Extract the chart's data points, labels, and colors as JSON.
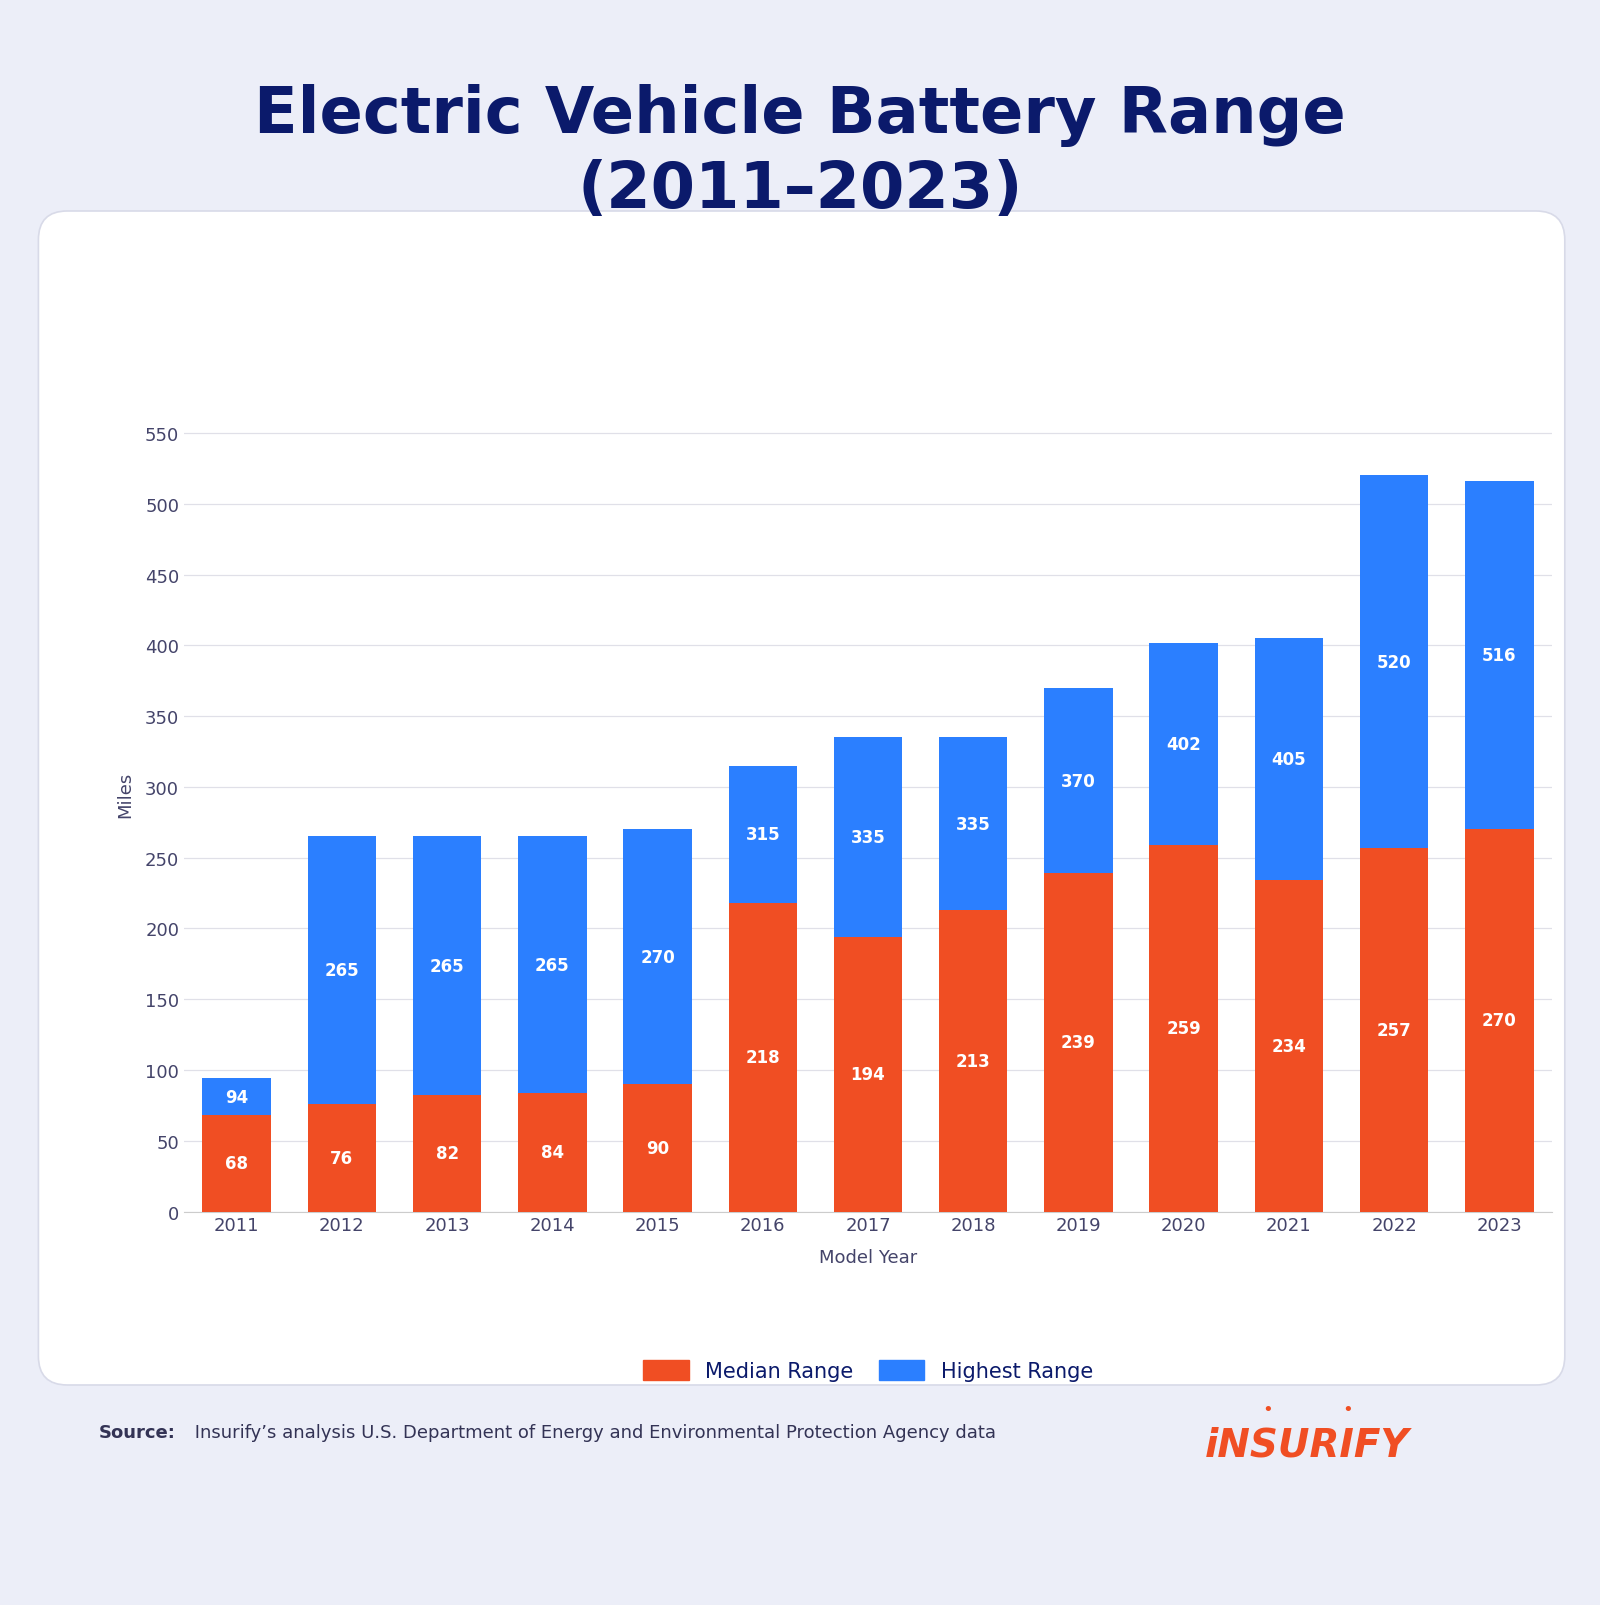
{
  "title": "Electric Vehicle Battery Range\n(2011–2023)",
  "years": [
    2011,
    2012,
    2013,
    2014,
    2015,
    2016,
    2017,
    2018,
    2019,
    2020,
    2021,
    2022,
    2023
  ],
  "median_range": [
    68,
    76,
    82,
    84,
    90,
    218,
    194,
    213,
    239,
    259,
    234,
    257,
    270
  ],
  "highest_range": [
    94,
    265,
    265,
    265,
    270,
    315,
    335,
    335,
    370,
    402,
    405,
    520,
    516
  ],
  "median_color": "#F04E23",
  "highest_color": "#2B7FFF",
  "title_color": "#0B1A6B",
  "axis_label_color": "#44446A",
  "tick_color": "#44446A",
  "background_outer": "#ECEEF8",
  "background_inner": "#FFFFFF",
  "xlabel": "Model Year",
  "ylabel": "Miles",
  "legend_median": "Median Range",
  "legend_highest": "Highest Range",
  "yticks": [
    0,
    50,
    100,
    150,
    200,
    250,
    300,
    350,
    400,
    450,
    500,
    550
  ],
  "ylim": [
    0,
    590
  ],
  "source_bold": "Source:",
  "source_text": " Insurify’s analysis U.S. Department of Energy and Environmental Protection Agency data",
  "insurify_text": "iNSURIFY",
  "bar_width": 0.65
}
